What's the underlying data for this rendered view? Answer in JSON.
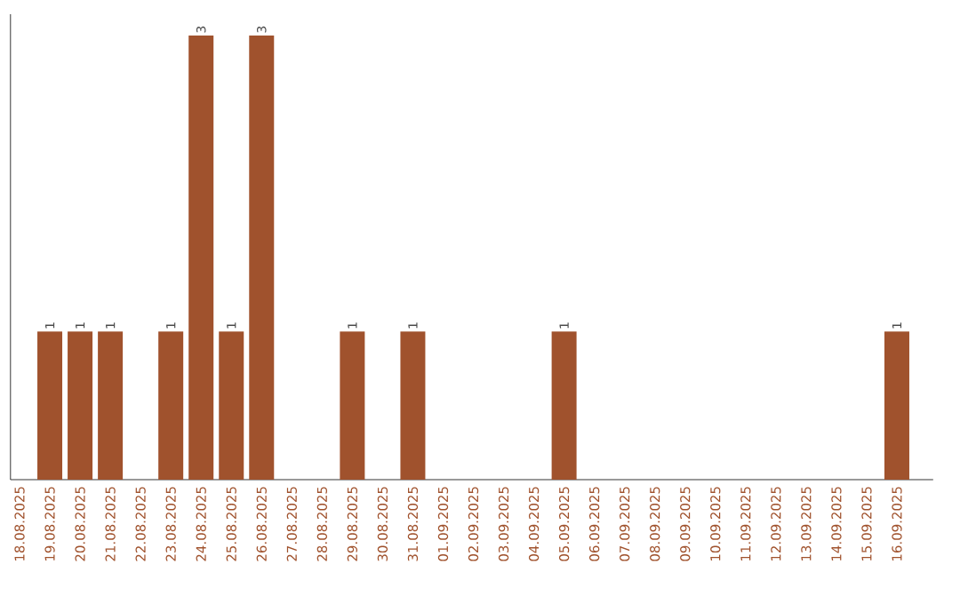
{
  "chart_data": {
    "type": "bar",
    "categories": [
      "18.08.2025",
      "19.08.2025",
      "20.08.2025",
      "21.08.2025",
      "22.08.2025",
      "23.08.2025",
      "24.08.2025",
      "25.08.2025",
      "26.08.2025",
      "27.08.2025",
      "28.08.2025",
      "29.08.2025",
      "30.08.2025",
      "31.08.2025",
      "01.09.2025",
      "02.09.2025",
      "03.09.2025",
      "04.09.2025",
      "05.09.2025",
      "06.09.2025",
      "07.09.2025",
      "08.09.2025",
      "09.09.2025",
      "10.09.2025",
      "11.09.2025",
      "12.09.2025",
      "13.09.2025",
      "14.09.2025",
      "15.09.2025",
      "16.09.2025"
    ],
    "values": [
      0,
      1,
      1,
      1,
      0,
      1,
      3,
      1,
      3,
      0,
      0,
      1,
      0,
      1,
      0,
      0,
      0,
      0,
      1,
      0,
      0,
      0,
      0,
      0,
      0,
      0,
      0,
      0,
      0,
      1
    ],
    "value_labels": [
      null,
      "1",
      "1",
      "1",
      null,
      "1",
      "3",
      "1",
      "3",
      null,
      null,
      "1",
      null,
      "1",
      null,
      null,
      null,
      null,
      "1",
      null,
      null,
      null,
      null,
      null,
      null,
      null,
      null,
      null,
      null,
      "1"
    ],
    "color": "#a0522d",
    "tick_labels": "x",
    "grid": false
  }
}
